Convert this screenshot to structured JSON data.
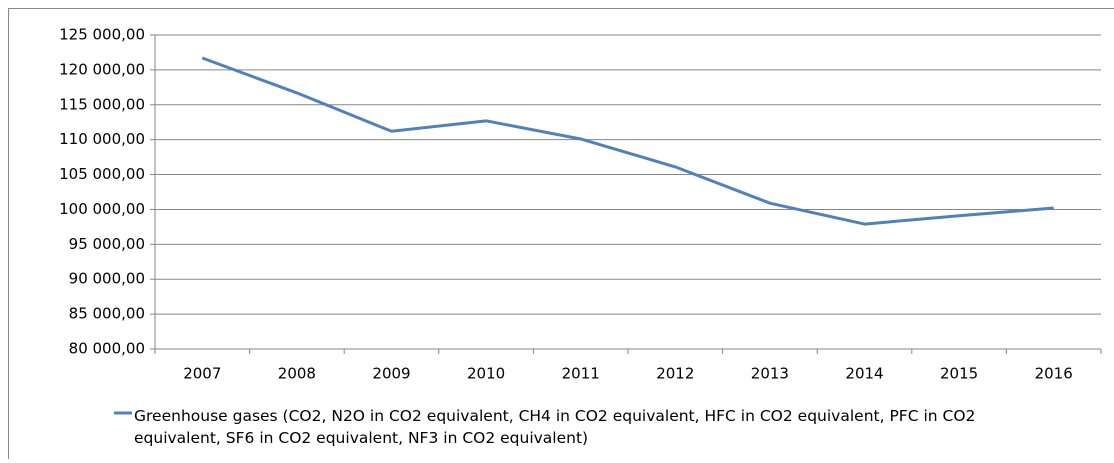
{
  "chart_data": {
    "type": "line",
    "categories": [
      "2007",
      "2008",
      "2009",
      "2010",
      "2011",
      "2012",
      "2013",
      "2014",
      "2015",
      "2016"
    ],
    "series": [
      {
        "name": "Greenhouse gases (CO2, N2O in CO2 equivalent, CH4 in CO2 equivalent, HFC in CO2 equivalent, PFC in CO2 equivalent, SF6 in CO2 equivalent, NF3 in CO2 equivalent)",
        "color": "#4f81bd",
        "values": [
          121700,
          116700,
          111200,
          112700,
          110100,
          106100,
          100900,
          97900,
          99100,
          100200
        ]
      }
    ],
    "ylim": [
      80000,
      125000
    ],
    "yticks": [
      {
        "value": 80000,
        "label": "80 000,00"
      },
      {
        "value": 85000,
        "label": "85 000,00"
      },
      {
        "value": 90000,
        "label": "90 000,00"
      },
      {
        "value": 95000,
        "label": "95 000,00"
      },
      {
        "value": 100000,
        "label": "100 000,00"
      },
      {
        "value": 105000,
        "label": "105 000,00"
      },
      {
        "value": 110000,
        "label": "110 000,00"
      },
      {
        "value": 115000,
        "label": "115 000,00"
      },
      {
        "value": 120000,
        "label": "120 000,00"
      },
      {
        "value": 125000,
        "label": "125 000,00"
      }
    ],
    "grid": true,
    "legend": "bottom"
  }
}
